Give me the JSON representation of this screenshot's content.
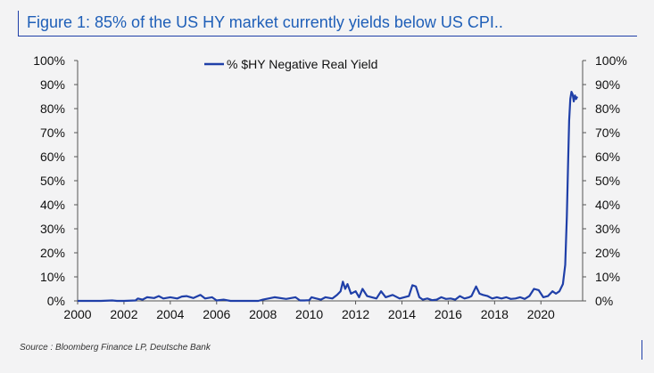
{
  "header": {
    "title": "Figure 1: 85% of the US HY market currently yields below US CPI.."
  },
  "footer": {
    "source": "Source : Bloomberg Finance LP, Deutsche Bank"
  },
  "chart_data": {
    "type": "line",
    "title": "Figure 1: 85% of the US HY market currently yields below US CPI..",
    "xlabel": "",
    "ylabel": "",
    "xlim": [
      2000,
      2021.8
    ],
    "ylim": [
      0,
      100
    ],
    "y_ticks": [
      "0%",
      "10%",
      "20%",
      "30%",
      "40%",
      "50%",
      "60%",
      "70%",
      "80%",
      "90%",
      "100%"
    ],
    "x_ticks": [
      "2000",
      "2002",
      "2004",
      "2006",
      "2008",
      "2010",
      "2012",
      "2014",
      "2016",
      "2018",
      "2020"
    ],
    "legend_position": "top-center",
    "colors": {
      "line": "#1f3fa8",
      "axis": "#555555",
      "title": "#1f5fb8"
    },
    "series": [
      {
        "name": "% $HY Negative Real Yield",
        "x": [
          2000.0,
          2001.0,
          2001.5,
          2001.7,
          2002.0,
          2002.5,
          2002.6,
          2002.8,
          2003.0,
          2003.3,
          2003.5,
          2003.7,
          2004.0,
          2004.3,
          2004.5,
          2004.7,
          2005.0,
          2005.3,
          2005.5,
          2005.8,
          2006.0,
          2006.3,
          2006.6,
          2007.0,
          2007.5,
          2007.8,
          2008.0,
          2008.5,
          2009.0,
          2009.4,
          2009.6,
          2009.8,
          2010.0,
          2010.1,
          2010.3,
          2010.5,
          2010.7,
          2011.0,
          2011.2,
          2011.35,
          2011.45,
          2011.55,
          2011.65,
          2011.8,
          2012.0,
          2012.15,
          2012.3,
          2012.5,
          2012.7,
          2012.9,
          2013.1,
          2013.3,
          2013.6,
          2013.9,
          2014.1,
          2014.3,
          2014.45,
          2014.6,
          2014.75,
          2014.9,
          2015.1,
          2015.3,
          2015.5,
          2015.7,
          2015.9,
          2016.1,
          2016.3,
          2016.5,
          2016.7,
          2016.9,
          2017.0,
          2017.2,
          2017.35,
          2017.5,
          2017.7,
          2017.9,
          2018.1,
          2018.3,
          2018.5,
          2018.7,
          2018.9,
          2019.1,
          2019.3,
          2019.5,
          2019.7,
          2019.9,
          2020.1,
          2020.3,
          2020.5,
          2020.65,
          2020.8,
          2020.95,
          2021.05,
          2021.12,
          2021.18,
          2021.22,
          2021.27,
          2021.32,
          2021.37,
          2021.42,
          2021.47,
          2021.52,
          2021.57
        ],
        "values": [
          0.0,
          0.0,
          0.2,
          0.0,
          0.0,
          0.2,
          1.0,
          0.5,
          1.5,
          1.2,
          2.0,
          1.0,
          1.5,
          1.0,
          1.8,
          2.0,
          1.2,
          2.5,
          1.0,
          1.5,
          0.2,
          0.5,
          0.0,
          0.0,
          0.0,
          0.0,
          0.5,
          1.5,
          0.8,
          1.5,
          0.2,
          0.2,
          0.3,
          1.5,
          1.0,
          0.5,
          1.5,
          1.0,
          2.5,
          4.0,
          8.0,
          5.0,
          7.0,
          3.0,
          4.0,
          1.5,
          5.0,
          2.0,
          1.5,
          1.0,
          4.0,
          1.5,
          2.5,
          1.0,
          1.5,
          2.0,
          6.5,
          6.0,
          1.5,
          0.5,
          1.0,
          0.3,
          0.5,
          1.5,
          0.8,
          1.0,
          0.5,
          2.0,
          1.0,
          1.5,
          2.0,
          6.0,
          3.0,
          2.5,
          2.0,
          1.0,
          1.5,
          1.0,
          1.5,
          0.8,
          1.0,
          1.5,
          0.8,
          2.0,
          5.0,
          4.5,
          1.5,
          2.0,
          4.0,
          3.0,
          4.0,
          7.0,
          15.0,
          35.0,
          60.0,
          75.0,
          84.0,
          87.0,
          86.0,
          83.0,
          85.5,
          84.0,
          85.0
        ]
      }
    ]
  }
}
